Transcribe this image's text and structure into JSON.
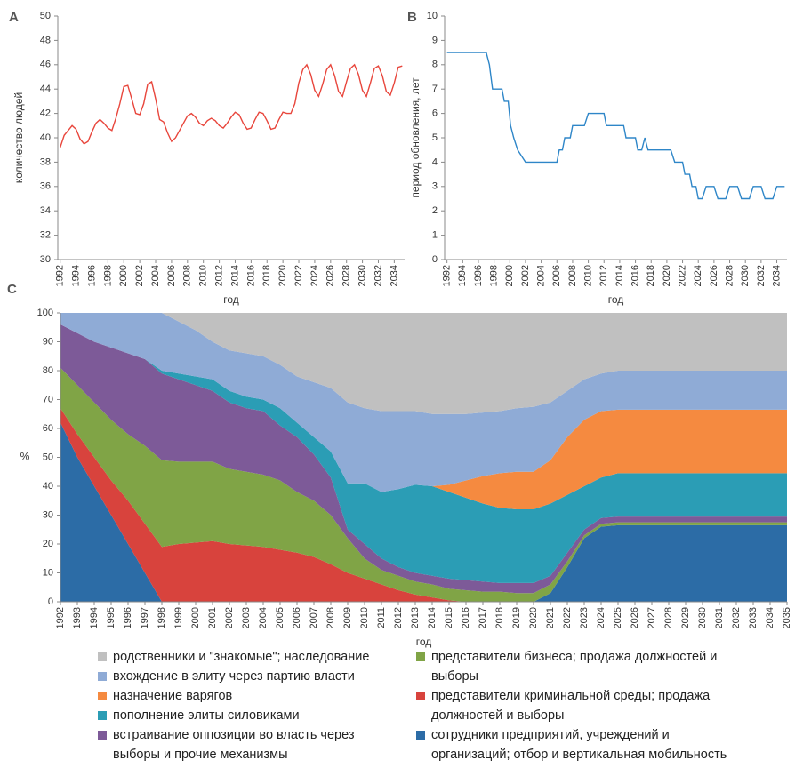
{
  "chart_data": [
    {
      "type": "line",
      "panel_label": "A",
      "ylabel": "количество людей",
      "xlabel": "год",
      "color": "#e8463c",
      "x": [
        1992,
        1992.5,
        1993,
        1993.5,
        1994,
        1994.5,
        1995,
        1995.5,
        1996,
        1996.5,
        1997,
        1997.5,
        1998,
        1998.5,
        1999,
        1999.5,
        2000,
        2000.5,
        2001,
        2001.5,
        2002,
        2002.5,
        2003,
        2003.5,
        2004,
        2004.5,
        2005,
        2005.5,
        2006,
        2006.5,
        2007,
        2007.5,
        2008,
        2008.5,
        2009,
        2009.5,
        2010,
        2010.5,
        2011,
        2011.5,
        2012,
        2012.5,
        2013,
        2013.5,
        2014,
        2014.5,
        2015,
        2015.5,
        2016,
        2016.5,
        2017,
        2017.5,
        2018,
        2018.5,
        2019,
        2019.5,
        2020,
        2020.5,
        2021,
        2021.5,
        2022,
        2022.5,
        2023,
        2023.5,
        2024,
        2024.5,
        2025,
        2025.5,
        2026,
        2026.5,
        2027,
        2027.5,
        2028,
        2028.5,
        2029,
        2029.5,
        2030,
        2030.5,
        2031,
        2031.5,
        2032,
        2032.5,
        2033,
        2033.5,
        2034,
        2034.5,
        2035
      ],
      "values": [
        39.2,
        40.2,
        40.6,
        41.0,
        40.7,
        39.9,
        39.5,
        39.7,
        40.5,
        41.2,
        41.5,
        41.2,
        40.8,
        40.6,
        41.6,
        42.8,
        44.2,
        44.3,
        43.2,
        42.0,
        41.9,
        42.8,
        44.4,
        44.6,
        43.2,
        41.5,
        41.3,
        40.4,
        39.7,
        40.0,
        40.6,
        41.2,
        41.8,
        42.0,
        41.7,
        41.2,
        41.0,
        41.4,
        41.6,
        41.4,
        41.0,
        40.8,
        41.2,
        41.7,
        42.1,
        41.9,
        41.2,
        40.7,
        40.8,
        41.5,
        42.1,
        42.0,
        41.4,
        40.7,
        40.8,
        41.5,
        42.1,
        42.0,
        42.0,
        42.8,
        44.5,
        45.6,
        46.0,
        45.2,
        43.9,
        43.4,
        44.4,
        45.6,
        46.0,
        45.1,
        43.8,
        43.4,
        44.6,
        45.7,
        46.0,
        45.2,
        43.9,
        43.4,
        44.5,
        45.7,
        45.9,
        45.1,
        43.8,
        43.5,
        44.5,
        45.8,
        45.9
      ],
      "xlim": [
        1991.7,
        2035.3
      ],
      "xticks": [
        1992,
        1994,
        1996,
        1998,
        2000,
        2002,
        2004,
        2006,
        2008,
        2010,
        2012,
        2014,
        2016,
        2018,
        2020,
        2022,
        2024,
        2026,
        2028,
        2030,
        2032,
        2034
      ],
      "ylim": [
        30,
        50
      ],
      "yticks": [
        30,
        32,
        34,
        36,
        38,
        40,
        42,
        44,
        46,
        48,
        50
      ]
    },
    {
      "type": "line",
      "panel_label": "B",
      "ylabel": "период обновления, лет",
      "xlabel": "год",
      "color": "#2e86c8",
      "x": [
        1992,
        1997,
        1997.4,
        1997.8,
        1999,
        1999.3,
        1999.8,
        2000.1,
        2000.5,
        2001,
        2002,
        2006,
        2006.3,
        2006.7,
        2007,
        2007.7,
        2008,
        2009.5,
        2010,
        2012,
        2012.3,
        2014.5,
        2014.8,
        2016,
        2016.3,
        2016.8,
        2017.2,
        2017.6,
        2020.5,
        2021,
        2022,
        2022.3,
        2022.9,
        2023.2,
        2023.7,
        2024,
        2024.5,
        2025,
        2026,
        2026.5,
        2027.5,
        2028,
        2029,
        2029.5,
        2030.5,
        2031,
        2032,
        2032.5,
        2033.5,
        2034,
        2035
      ],
      "values": [
        8.5,
        8.5,
        8,
        7,
        7,
        6.5,
        6.5,
        5.5,
        5,
        4.5,
        4,
        4,
        4.5,
        4.5,
        5,
        5,
        5.5,
        5.5,
        6,
        6,
        5.5,
        5.5,
        5,
        5,
        4.5,
        4.5,
        5,
        4.5,
        4.5,
        4,
        4,
        3.5,
        3.5,
        3,
        3,
        2.5,
        2.5,
        3,
        3,
        2.5,
        2.5,
        3,
        3,
        2.5,
        2.5,
        3,
        3,
        2.5,
        2.5,
        3,
        3
      ],
      "xlim": [
        1991.7,
        2035.3
      ],
      "xticks": [
        1992,
        1994,
        1996,
        1998,
        2000,
        2002,
        2004,
        2006,
        2008,
        2010,
        2012,
        2014,
        2016,
        2018,
        2020,
        2022,
        2024,
        2026,
        2028,
        2030,
        2032,
        2034
      ],
      "ylim": [
        0,
        10
      ],
      "yticks": [
        0,
        1,
        2,
        3,
        4,
        5,
        6,
        7,
        8,
        9,
        10
      ]
    },
    {
      "type": "stacked_area",
      "panel_label": "C",
      "ylabel": "%",
      "xlabel": "год",
      "x": [
        1992,
        1993,
        1994,
        1995,
        1996,
        1997,
        1998,
        1999,
        2000,
        2001,
        2002,
        2003,
        2004,
        2005,
        2006,
        2007,
        2008,
        2009,
        2010,
        2011,
        2012,
        2013,
        2014,
        2015,
        2016,
        2017,
        2018,
        2019,
        2020,
        2021,
        2022,
        2023,
        2024,
        2025,
        2026,
        2027,
        2028,
        2029,
        2030,
        2031,
        2032,
        2033,
        2034,
        2035
      ],
      "xlim": [
        1992,
        2035
      ],
      "ylim": [
        0,
        100
      ],
      "yticks": [
        0,
        10,
        20,
        30,
        40,
        50,
        60,
        70,
        80,
        90,
        100
      ],
      "series": [
        {
          "name": "родственники и \"знакомые\"; наследование",
          "color": "#c0c0c0",
          "values": [
            0,
            0,
            0,
            0,
            0,
            0,
            0,
            3,
            6,
            10,
            13,
            14,
            15,
            18,
            22,
            24,
            26,
            31,
            33,
            34,
            34,
            34,
            35,
            35,
            35,
            34.5,
            34,
            33,
            32.5,
            31,
            27,
            23,
            21,
            20,
            20,
            20,
            20,
            20,
            20,
            20,
            20,
            20,
            20,
            20
          ]
        },
        {
          "name": "вхождение в элиту через партию власти",
          "color": "#8fabd6",
          "values": [
            4,
            7,
            10,
            12,
            14,
            16,
            20,
            18,
            16,
            13,
            14,
            15,
            15,
            15,
            16,
            19,
            22,
            28,
            26,
            28,
            27,
            25.5,
            25,
            24.5,
            23,
            22,
            21.5,
            22,
            22.5,
            20,
            16,
            14,
            13,
            13.5,
            13.5,
            13.5,
            13.5,
            13.5,
            13.5,
            13.5,
            13.5,
            13.5,
            13.5,
            13.5
          ]
        },
        {
          "name": "назначение варягов",
          "color": "#f58a40",
          "values": [
            0,
            0,
            0,
            0,
            0,
            0,
            0,
            0,
            0,
            0,
            0,
            0,
            0,
            0,
            0,
            0,
            0,
            0,
            0,
            0,
            0,
            0,
            0,
            2.5,
            6,
            9.5,
            12,
            13,
            13,
            15,
            20,
            23,
            23,
            22,
            22,
            22,
            22,
            22,
            22,
            22,
            22,
            22,
            22,
            22
          ]
        },
        {
          "name": "пополнение элиты силовиками",
          "color": "#2b9db5",
          "values": [
            0,
            0,
            0,
            0,
            0,
            0,
            1,
            2,
            3,
            4,
            4,
            4,
            4,
            6,
            5,
            6,
            9,
            16,
            21,
            23,
            27,
            30.5,
            31,
            30,
            28.5,
            27,
            26,
            25.5,
            25.5,
            25,
            20,
            15,
            14,
            15,
            15,
            15,
            15,
            15,
            15,
            15,
            15,
            15,
            15,
            15
          ]
        },
        {
          "name": "встраивание оппозиции во власть через выборы и прочие механизмы",
          "color": "#7d5a98",
          "values": [
            15,
            18,
            21,
            25,
            28,
            30,
            30,
            28.5,
            26.5,
            24.5,
            23,
            22,
            22,
            19,
            19,
            16,
            13,
            3,
            5,
            4,
            3,
            3,
            3,
            3.5,
            3.5,
            3.5,
            3,
            3.5,
            3.5,
            3,
            3,
            2,
            2,
            2,
            2,
            2,
            2,
            2,
            2,
            2,
            2,
            2,
            2,
            2
          ]
        },
        {
          "name": "представители бизнеса; продажа должностей и выборы",
          "color": "#80a446",
          "values": [
            14,
            17,
            19,
            21,
            23,
            27,
            30,
            28.5,
            28,
            27.5,
            26,
            25.5,
            25,
            24,
            21,
            19.5,
            17,
            12,
            7,
            5,
            5,
            4.5,
            4.5,
            4,
            4,
            3.5,
            3.5,
            3,
            3,
            3,
            2,
            1,
            1,
            1,
            1,
            1,
            1,
            1,
            1,
            1,
            1,
            1,
            1,
            1
          ]
        },
        {
          "name": "представители криминальной среды; продажа должностей и выборы",
          "color": "#d8433d",
          "values": [
            5,
            8,
            10,
            12,
            15,
            17,
            19,
            20,
            20.5,
            21,
            20,
            19.5,
            19,
            18,
            17,
            15.5,
            13,
            10,
            8,
            6,
            4,
            2.5,
            1.5,
            0.5,
            0,
            0,
            0,
            0,
            0,
            0,
            0,
            0,
            0,
            0,
            0,
            0,
            0,
            0,
            0,
            0,
            0,
            0,
            0,
            0
          ]
        },
        {
          "name": "сотрудники предприятий, учреждений и организаций; отбор и вертикальная мобильность",
          "color": "#2c6ca6",
          "values": [
            62,
            50,
            40,
            30,
            20,
            10,
            0,
            0,
            0,
            0,
            0,
            0,
            0,
            0,
            0,
            0,
            0,
            0,
            0,
            0,
            0,
            0,
            0,
            0,
            0,
            0,
            0,
            0,
            0,
            3,
            12,
            22,
            26,
            26.5,
            26.5,
            26.5,
            26.5,
            26.5,
            26.5,
            26.5,
            26.5,
            26.5,
            26.5,
            26.5
          ]
        }
      ]
    }
  ]
}
